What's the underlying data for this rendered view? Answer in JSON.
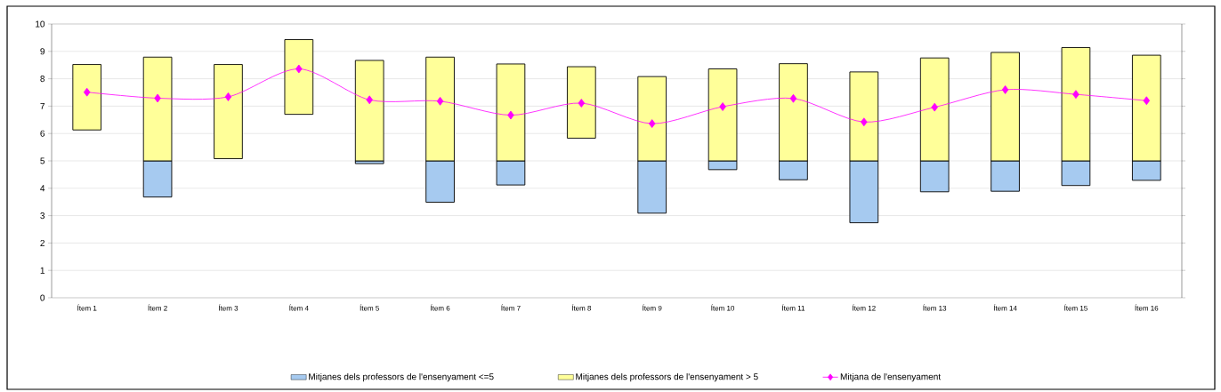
{
  "chart_data": {
    "type": "bar",
    "categories": [
      "Ítem 1",
      "Ítem 2",
      "Ítem 3",
      "Ítem 4",
      "Ítem 5",
      "Ítem 6",
      "Ítem 7",
      "Ítem 8",
      "Ítem 9",
      "Ítem 10",
      "Ítem 11",
      "Ítem 12",
      "Ítem 13",
      "Ítem 14",
      "Ítem 15",
      "Ítem 16"
    ],
    "series": [
      {
        "name": "Mitjanes dels professors de l'ensenyament <=5",
        "color": "#a6caf0",
        "base": [
          null,
          3.68,
          null,
          null,
          4.9,
          3.49,
          4.12,
          null,
          3.09,
          4.68,
          4.31,
          2.74,
          3.87,
          3.89,
          4.1,
          4.29
        ],
        "values": [
          null,
          1.32,
          null,
          null,
          0.1,
          1.51,
          0.88,
          null,
          1.91,
          0.32,
          0.69,
          2.26,
          1.13,
          1.11,
          0.9,
          0.71
        ]
      },
      {
        "name": "Mitjanes dels professors de l'ensenyament > 5",
        "color": "#ffff99",
        "base": [
          6.13,
          5,
          5.08,
          6.7,
          5,
          5,
          5,
          5.83,
          5,
          5,
          5,
          5,
          5,
          5,
          5,
          5
        ],
        "values": [
          2.39,
          3.79,
          3.44,
          2.73,
          3.67,
          3.79,
          3.54,
          2.61,
          3.08,
          3.36,
          3.55,
          3.25,
          3.76,
          3.96,
          4.14,
          3.86
        ]
      },
      {
        "name": "Mitjana de l'ensenyament",
        "type": "line",
        "color": "#ff00ff",
        "marker": "diamond",
        "values": [
          7.51,
          7.29,
          7.34,
          8.36,
          7.23,
          7.18,
          6.67,
          7.11,
          6.36,
          6.98,
          7.28,
          6.42,
          6.96,
          7.6,
          7.43,
          7.2
        ]
      }
    ],
    "ylim": [
      0,
      10
    ],
    "yticks": [
      0,
      1,
      2,
      3,
      4,
      5,
      6,
      7,
      8,
      9,
      10
    ],
    "grid": "y",
    "legend": "bottom"
  }
}
